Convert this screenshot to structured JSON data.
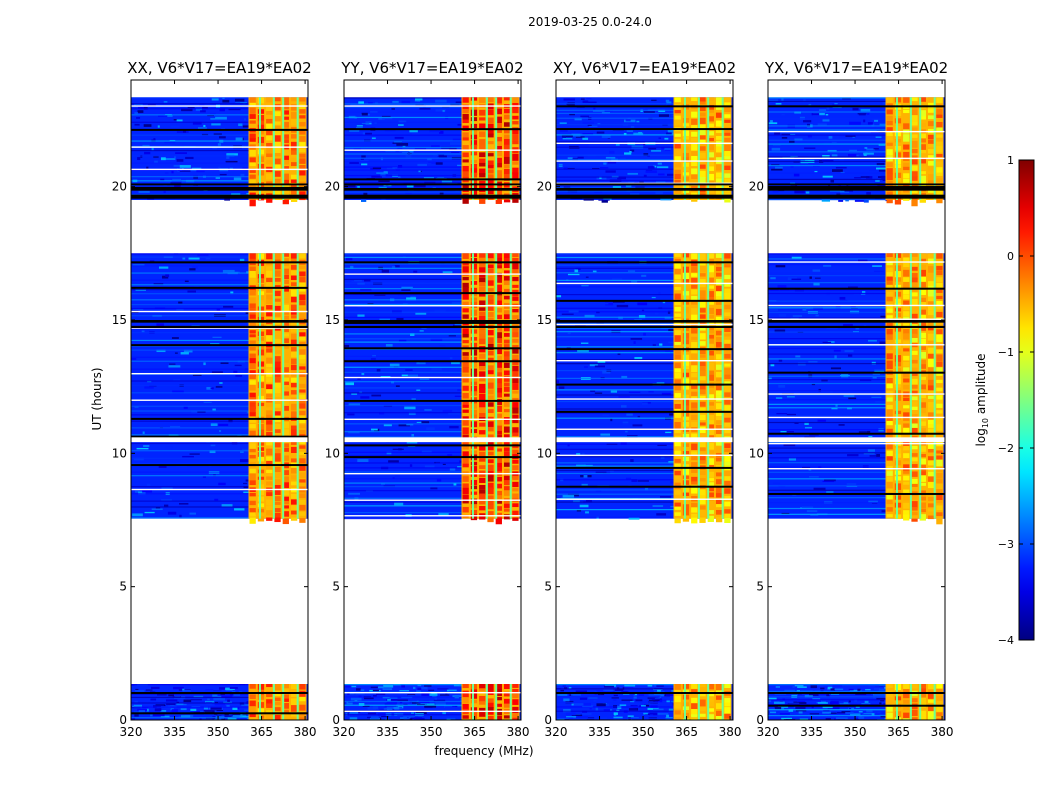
{
  "figure": {
    "suptitle": "2019-03-25 0.0-24.0",
    "xlabel": "frequency (MHz)",
    "ylabel": "UT (hours)",
    "colorbar_label": "log",
    "colorbar_label_sub": "10",
    "colorbar_label_rest": " amplitude"
  },
  "chart_data": {
    "type": "heatmap",
    "x_range": [
      320,
      381
    ],
    "y_range": [
      0,
      24
    ],
    "x_ticks": [
      320,
      335,
      350,
      365,
      380
    ],
    "y_ticks": [
      0,
      5,
      10,
      15,
      20
    ],
    "color_range": [
      -4,
      1
    ],
    "colorbar_ticks": [
      1,
      0,
      -1,
      -2,
      -3,
      -4
    ],
    "colormap": "jet",
    "panels": [
      {
        "title": "XX, V6*V17=EA19*EA02",
        "corr": "XX"
      },
      {
        "title": "YY, V6*V17=EA19*EA02",
        "corr": "YY"
      },
      {
        "title": "XY, V6*V17=EA19*EA02",
        "corr": "XY"
      },
      {
        "title": "YX, V6*V17=EA19*EA02",
        "corr": "YX"
      }
    ],
    "data_segments_hours": [
      [
        0.0,
        1.35
      ],
      [
        7.55,
        17.5
      ],
      [
        19.5,
        23.35
      ]
    ],
    "blank_gaps_hours": [
      [
        1.35,
        7.55
      ],
      [
        17.5,
        19.5
      ]
    ],
    "bright_band_mhz": [
      360.5,
      380.5
    ],
    "background_level_log10": -3.2,
    "band_level_log10": -0.5
  }
}
